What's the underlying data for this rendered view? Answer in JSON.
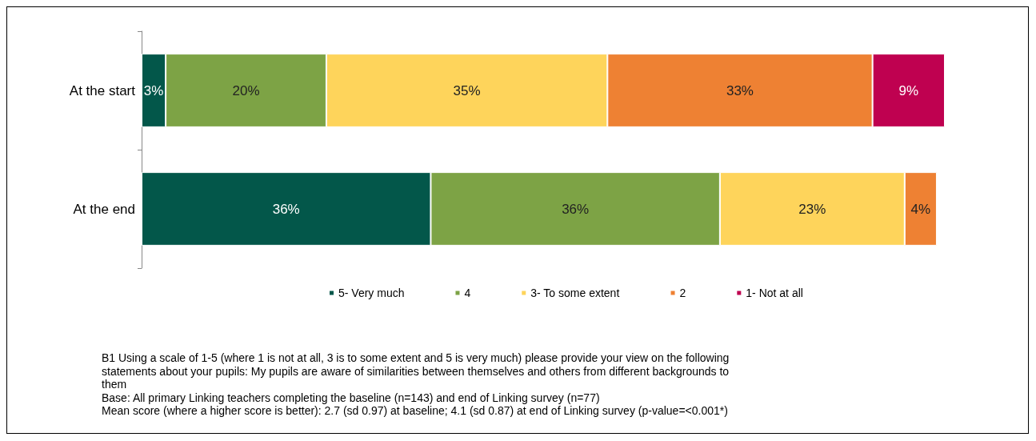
{
  "chart_data": {
    "type": "bar",
    "orientation": "horizontal",
    "stacked": true,
    "categories": [
      "At the start",
      "At the end"
    ],
    "series": [
      {
        "name": "5- Very much",
        "color": "#03574a",
        "values": [
          3,
          36
        ],
        "value_labels": [
          "3%",
          "36%"
        ]
      },
      {
        "name": "4",
        "color": "#7da345",
        "values": [
          20,
          36
        ],
        "value_labels": [
          "20%",
          "36%"
        ]
      },
      {
        "name": "3- To some extent",
        "color": "#fed45b",
        "values": [
          35,
          23
        ],
        "value_labels": [
          "35%",
          "23%"
        ]
      },
      {
        "name": "2",
        "color": "#ee8133",
        "values": [
          33,
          4
        ],
        "value_labels": [
          "33%",
          "4%"
        ]
      },
      {
        "name": "1- Not at all",
        "color": "#bf0150",
        "values": [
          9,
          null
        ],
        "value_labels": [
          "9%",
          null
        ]
      }
    ],
    "legend": "bottom",
    "annotations": [
      "B1 Using a scale of 1-5 (where 1 is not at all, 3 is to some extent and 5 is very much) please provide your view on the following statements about your pupils: My pupils are aware of similarities between themselves and others from different backgrounds to them",
      "Base: All primary Linking teachers completing the baseline (n=143) and end of Linking survey (n=77)",
      "Mean score (where a higher score is better): 2.7 (sd 0.97) at baseline; 4.1 (sd 0.87) at end of Linking survey (p-value=<0.001*)"
    ]
  }
}
